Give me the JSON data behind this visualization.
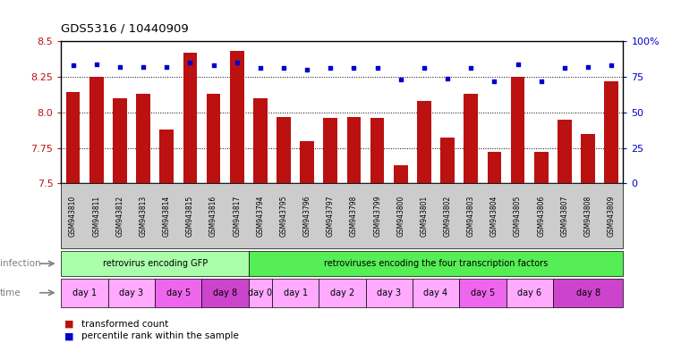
{
  "title": "GDS5316 / 10440909",
  "samples": [
    "GSM943810",
    "GSM943811",
    "GSM943812",
    "GSM943813",
    "GSM943814",
    "GSM943815",
    "GSM943816",
    "GSM943817",
    "GSM943794",
    "GSM943795",
    "GSM943796",
    "GSM943797",
    "GSM943798",
    "GSM943799",
    "GSM943800",
    "GSM943801",
    "GSM943802",
    "GSM943803",
    "GSM943804",
    "GSM943805",
    "GSM943806",
    "GSM943807",
    "GSM943808",
    "GSM943809"
  ],
  "transformed_count": [
    8.14,
    8.25,
    8.1,
    8.13,
    7.88,
    8.42,
    8.13,
    8.43,
    8.1,
    7.97,
    7.8,
    7.96,
    7.97,
    7.96,
    7.63,
    8.08,
    7.82,
    8.13,
    7.72,
    8.25,
    7.72,
    7.95,
    7.85,
    8.22
  ],
  "percentile_rank": [
    83,
    84,
    82,
    82,
    82,
    85,
    83,
    85,
    81,
    81,
    80,
    81,
    81,
    81,
    73,
    81,
    74,
    81,
    72,
    84,
    72,
    81,
    82,
    83
  ],
  "ylim_left": [
    7.5,
    8.5
  ],
  "ylim_right": [
    0,
    100
  ],
  "yticks_left": [
    7.5,
    7.75,
    8.0,
    8.25,
    8.5
  ],
  "yticks_right": [
    0,
    25,
    50,
    75,
    100
  ],
  "bar_color": "#BB1111",
  "dot_color": "#0000CC",
  "infection_labels": [
    {
      "text": "retrovirus encoding GFP",
      "start": 0,
      "end": 7,
      "color": "#AAFFAA"
    },
    {
      "text": "retroviruses encoding the four transcription factors",
      "start": 8,
      "end": 23,
      "color": "#55EE55"
    }
  ],
  "time_groups": [
    {
      "text": "day 1",
      "samples": [
        0,
        1
      ],
      "color": "#FFAAFF"
    },
    {
      "text": "day 3",
      "samples": [
        2,
        3
      ],
      "color": "#FFAAFF"
    },
    {
      "text": "day 5",
      "samples": [
        4,
        5
      ],
      "color": "#EE66EE"
    },
    {
      "text": "day 8",
      "samples": [
        6,
        7
      ],
      "color": "#CC44CC"
    },
    {
      "text": "day 0",
      "samples": [
        8
      ],
      "color": "#FFAAFF"
    },
    {
      "text": "day 1",
      "samples": [
        9,
        10
      ],
      "color": "#FFAAFF"
    },
    {
      "text": "day 2",
      "samples": [
        11,
        12
      ],
      "color": "#FFAAFF"
    },
    {
      "text": "day 3",
      "samples": [
        13,
        14
      ],
      "color": "#FFAAFF"
    },
    {
      "text": "day 4",
      "samples": [
        15,
        16
      ],
      "color": "#FFAAFF"
    },
    {
      "text": "day 5",
      "samples": [
        17,
        18
      ],
      "color": "#EE66EE"
    },
    {
      "text": "day 6",
      "samples": [
        19,
        20
      ],
      "color": "#FFAAFF"
    },
    {
      "text": "day 8",
      "samples": [
        21,
        22,
        23
      ],
      "color": "#CC44CC"
    }
  ],
  "legend": [
    {
      "color": "#BB1111",
      "label": "transformed count"
    },
    {
      "color": "#0000CC",
      "label": "percentile rank within the sample"
    }
  ],
  "xtick_bg_color": "#CCCCCC",
  "bg_color": "white"
}
